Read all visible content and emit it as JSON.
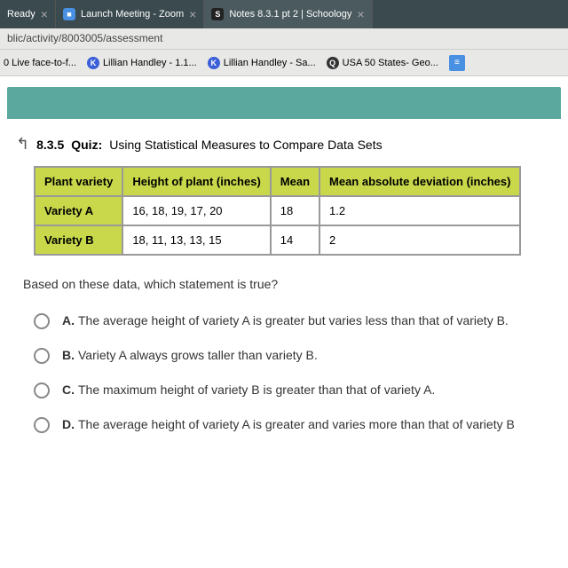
{
  "tabs": {
    "t0": {
      "label": "Ready"
    },
    "t1": {
      "label": "Launch Meeting - Zoom",
      "icon_bg": "#4a90e2",
      "icon_text": ""
    },
    "t2": {
      "label": "Notes 8.3.1 pt 2 | Schoology",
      "icon_bg": "#222",
      "icon_text": "S"
    }
  },
  "url": "blic/activity/8003005/assessment",
  "bookmarks": {
    "b0": {
      "label": "0 Live face-to-f..."
    },
    "b1": {
      "label": "Lillian Handley - 1.1...",
      "icon_bg": "#3a5fd8",
      "icon_text": "K"
    },
    "b2": {
      "label": "Lillian Handley - Sa...",
      "icon_bg": "#3a5fd8",
      "icon_text": "K"
    },
    "b3": {
      "label": "USA 50 States- Geo...",
      "icon_bg": "#333",
      "icon_text": "Q"
    }
  },
  "quiz": {
    "number": "8.3.5",
    "type": "Quiz:",
    "title": "Using Statistical Measures to Compare Data Sets"
  },
  "table": {
    "headers": {
      "c0": "Plant variety",
      "c1": "Height of plant (inches)",
      "c2": "Mean",
      "c3": "Mean absolute deviation (inches)"
    },
    "rows": {
      "r0": {
        "label": "Variety A",
        "heights": "16, 18, 19, 17, 20",
        "mean": "18",
        "mad": "1.2"
      },
      "r1": {
        "label": "Variety B",
        "heights": "18, 11, 13, 13, 15",
        "mean": "14",
        "mad": "2"
      }
    }
  },
  "question": "Based on these data, which statement is true?",
  "options": {
    "a": {
      "letter": "A.",
      "text": "The average height of variety A is greater but varies less than that of variety B."
    },
    "b": {
      "letter": "B.",
      "text": "Variety A always grows taller than variety B."
    },
    "c": {
      "letter": "C.",
      "text": "The maximum height of variety B is greater than that of variety A."
    },
    "d": {
      "letter": "D.",
      "text": "The average height of variety A is greater and varies more than that of variety B"
    }
  },
  "colors": {
    "header_bg": "#c8d84a",
    "teal": "#5aa89e",
    "tab_bg": "#3a4a4f"
  }
}
